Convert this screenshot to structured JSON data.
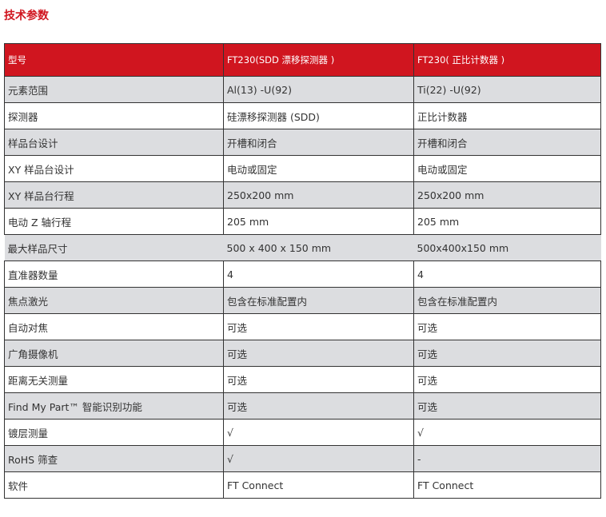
{
  "title": "技术参数",
  "header": [
    "型号",
    "FT230(SDD 漂移探测器 )",
    "FT230( 正比计数器 )"
  ],
  "rows": [
    [
      "元素范围",
      "Al(13) -U(92)",
      "Ti(22) -U(92)"
    ],
    [
      "探测器",
      "硅漂移探测器 (SDD)",
      "正比计数器"
    ],
    [
      "样品台设计",
      "开槽和闭合",
      "开槽和闭合"
    ],
    [
      "XY 样品台设计",
      "电动或固定",
      "电动或固定"
    ],
    [
      "XY 样品台行程",
      "250x200 mm",
      "250x200 mm"
    ],
    [
      "电动 Z 轴行程",
      "205 mm",
      "205 mm"
    ],
    [
      "最大样品尺寸",
      "500 x 400 x 150 mm",
      "500x400x150 mm"
    ],
    [
      "直准器数量",
      "4",
      "4"
    ],
    [
      "焦点激光",
      "包含在标准配置内",
      "包含在标准配置内"
    ],
    [
      "自动对焦",
      "可选",
      "可选"
    ],
    [
      "广角摄像机",
      "可选",
      "可选"
    ],
    [
      "距离无关测量",
      "可选",
      "可选"
    ],
    [
      "Find My Part™ 智能识别功能",
      "可选",
      "可选"
    ],
    [
      "镀层测量",
      "√",
      "√"
    ],
    [
      "RoHS 筛查",
      "√",
      "-"
    ],
    [
      "软件",
      "FT Connect",
      "FT Connect"
    ]
  ]
}
